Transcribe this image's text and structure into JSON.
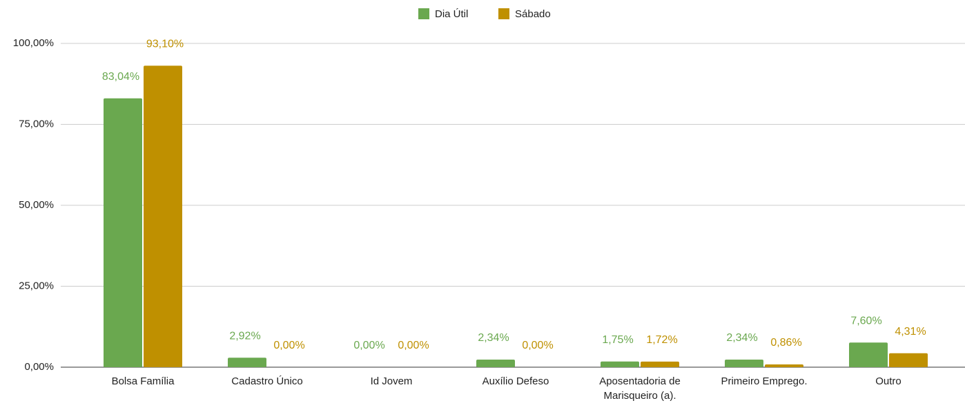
{
  "chart_data": {
    "type": "bar",
    "categories": [
      "Bolsa Família",
      "Cadastro Único",
      "Id Jovem",
      "Auxílio Defeso",
      "Aposentadoria de Marisqueiro (a).",
      "Primeiro Emprego.",
      "Outro"
    ],
    "series": [
      {
        "name": "Dia Útil",
        "color": "#6aa84f",
        "values": [
          83.04,
          2.92,
          0,
          2.34,
          1.75,
          2.34,
          7.6
        ],
        "value_labels": [
          "83,04%",
          "2,92%",
          "0,00%",
          "2,34%",
          "1,75%",
          "2,34%",
          "7,60%"
        ]
      },
      {
        "name": "Sábado",
        "color": "#bf9000",
        "values": [
          93.1,
          0,
          0,
          0,
          1.72,
          0.86,
          4.31
        ],
        "value_labels": [
          "93,10%",
          "0,00%",
          "0,00%",
          "0,00%",
          "1,72%",
          "0,86%",
          "4,31%"
        ]
      }
    ],
    "ylim": [
      0,
      100
    ],
    "yticks": [
      {
        "value": 0,
        "label": "0,00%"
      },
      {
        "value": 25,
        "label": "25,00%"
      },
      {
        "value": 50,
        "label": "50,00%"
      },
      {
        "value": 75,
        "label": "75,00%"
      },
      {
        "value": 100,
        "label": "100,00%"
      }
    ],
    "grid": true,
    "legend": "top"
  }
}
